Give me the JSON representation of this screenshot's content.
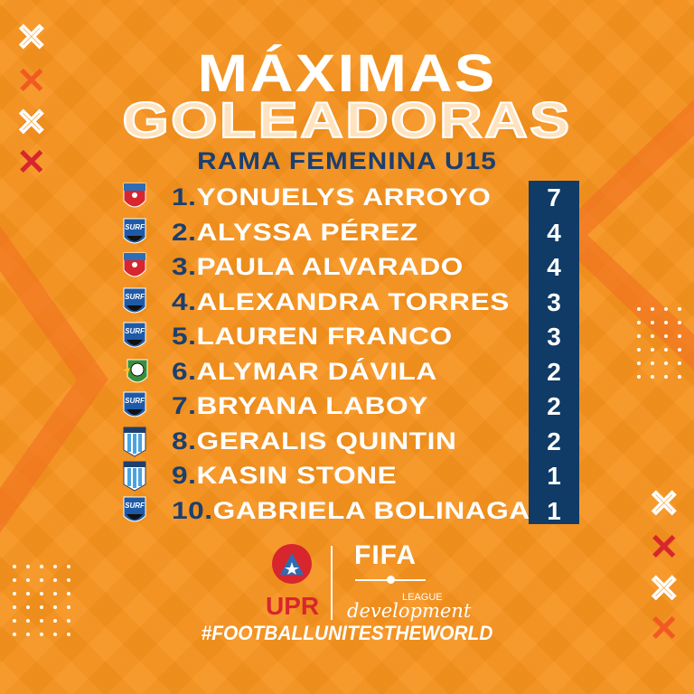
{
  "header": {
    "title_line1": "MÁXIMAS",
    "title_line2": "GOLEADORAS",
    "subtitle": "RAMA FEMENINA U15"
  },
  "colors": {
    "background": "#f7931e",
    "navy": "#0f3b66",
    "text_navy": "#1b3f6e",
    "accent_red": "#d7262e",
    "accent_orange": "#f15a22"
  },
  "scorers": [
    {
      "rank": "1.",
      "name": "YONUELYS ARROYO",
      "goals": "7",
      "team_badge": "puerto-rico-crest"
    },
    {
      "rank": "2.",
      "name": "ALYSSA PÉREZ",
      "goals": "4",
      "team_badge": "surf-crest"
    },
    {
      "rank": "3.",
      "name": "PAULA ALVARADO",
      "goals": "4",
      "team_badge": "puerto-rico-crest"
    },
    {
      "rank": "4.",
      "name": "ALEXANDRA TORRES",
      "goals": "3",
      "team_badge": "surf-crest"
    },
    {
      "rank": "5.",
      "name": "LAUREN FRANCO",
      "goals": "3",
      "team_badge": "surf-crest"
    },
    {
      "rank": "6.",
      "name": "ALYMAR DÁVILA",
      "goals": "2",
      "team_badge": "green-ball-crest"
    },
    {
      "rank": "7.",
      "name": "BRYANA LABOY",
      "goals": "2",
      "team_badge": "surf-crest"
    },
    {
      "rank": "8.",
      "name": "GERALIS QUINTIN",
      "goals": "2",
      "team_badge": "fraigcomar-crest"
    },
    {
      "rank": "9.",
      "name": "KASIN STONE",
      "goals": "1",
      "team_badge": "fraigcomar-crest"
    },
    {
      "rank": "10.",
      "name": "GABRIELA BOLINAGA",
      "goals": "1",
      "team_badge": "surf-crest"
    }
  ],
  "footer": {
    "fpf_logo": "FPF",
    "fifa": "FIFA",
    "league": "LEAGUE",
    "development": "development",
    "hashtag": "#FOOTBALLUNITESTHEWORLD"
  }
}
